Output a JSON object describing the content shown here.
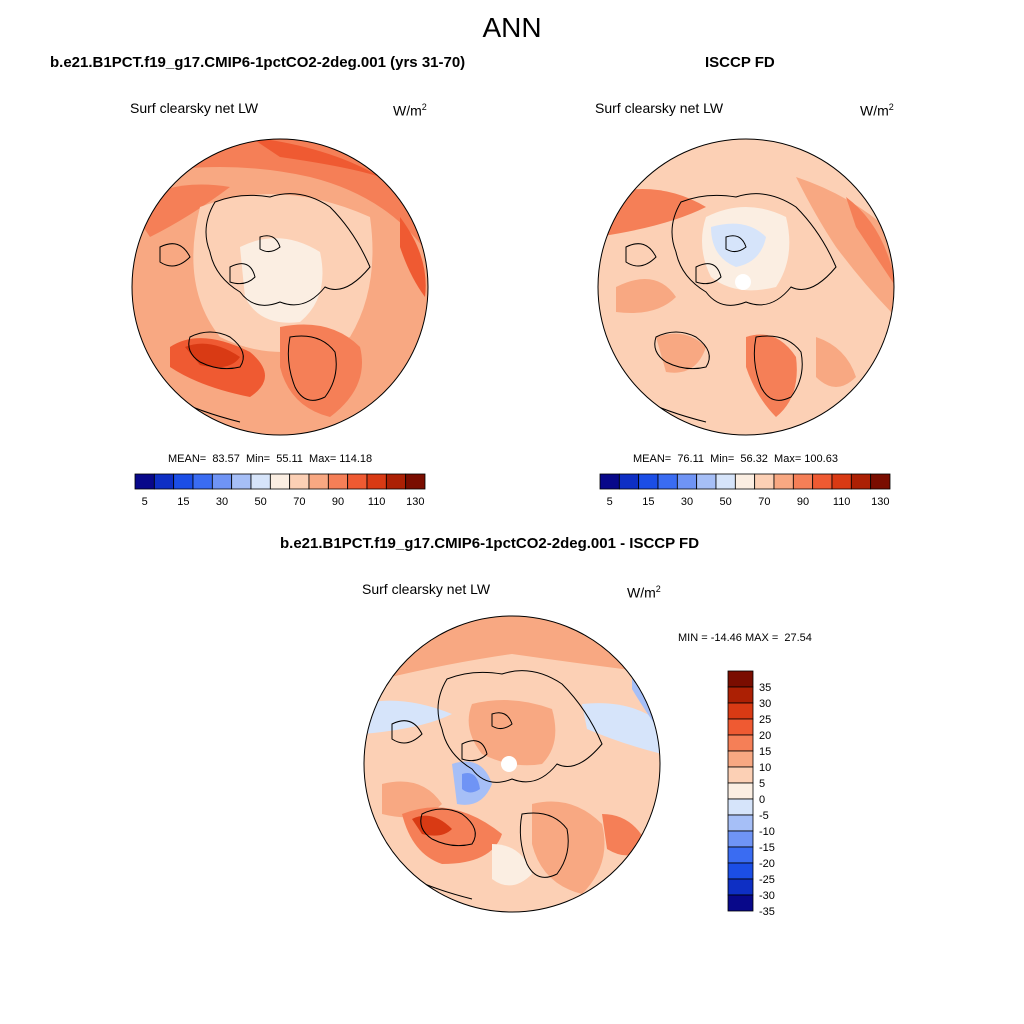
{
  "figure": {
    "title": "ANN"
  },
  "panels": [
    {
      "title": "b.e21.B1PCT.f19_g17.CMIP6-1pctCO2-2deg.001 (yrs 31-70)",
      "variable": "Surf clearsky net LW",
      "units_base": "W/m",
      "units_exp": "2",
      "stats": "MEAN=  83.57  Min=  55.11  Max= 114.18"
    },
    {
      "title": "ISCCP FD",
      "variable": "Surf clearsky net LW",
      "units_base": "W/m",
      "units_exp": "2",
      "stats": "MEAN=  76.11  Min=  56.32  Max= 100.63"
    },
    {
      "title": "b.e21.B1PCT.f19_g17.CMIP6-1pctCO2-2deg.001 - ISCCP FD",
      "variable": "Surf clearsky net LW",
      "units_base": "W/m",
      "units_exp": "2",
      "stats": "MIN = -14.46 MAX =  27.54"
    }
  ],
  "colorbars": {
    "absolute": {
      "colors": [
        "#08088a",
        "#0e2fc4",
        "#1b4ee6",
        "#3a6cf2",
        "#6f94f5",
        "#a6bff7",
        "#d6e4fa",
        "#fbeee2",
        "#fcd0b5",
        "#f8a882",
        "#f57f57",
        "#ef5a32",
        "#d93a14",
        "#ac2004",
        "#7a0d00"
      ],
      "tick_labels": [
        "5",
        "15",
        "30",
        "50",
        "70",
        "90",
        "110",
        "130"
      ]
    },
    "difference": {
      "colors": [
        "#7a0d00",
        "#ac2004",
        "#d93a14",
        "#ef5a32",
        "#f57f57",
        "#f8a882",
        "#fcd0b5",
        "#fbeee2",
        "#d6e4fa",
        "#a6bff7",
        "#6f94f5",
        "#3a6cf2",
        "#1b4ee6",
        "#0e2fc4",
        "#08088a"
      ],
      "tick_labels": [
        "35",
        "30",
        "25",
        "20",
        "15",
        "10",
        "5",
        "0",
        "-5",
        "-10",
        "-15",
        "-20",
        "-25",
        "-30",
        "-35"
      ]
    }
  },
  "chart_data": [
    {
      "type": "heatmap",
      "title": "b.e21.B1PCT.f19_g17.CMIP6-1pctCO2-2deg.001 (yrs 31-70)",
      "projection": "north polar stereographic",
      "variable": "Surf clearsky net LW",
      "units": "W/m2",
      "mean": 83.57,
      "min": 55.11,
      "max": 114.18
    },
    {
      "type": "heatmap",
      "title": "ISCCP FD",
      "projection": "north polar stereographic",
      "variable": "Surf clearsky net LW",
      "units": "W/m2",
      "mean": 76.11,
      "min": 56.32,
      "max": 100.63
    },
    {
      "type": "heatmap",
      "title": "b.e21.B1PCT.f19_g17.CMIP6-1pctCO2-2deg.001 - ISCCP FD",
      "projection": "north polar stereographic",
      "variable": "Surf clearsky net LW",
      "units": "W/m2",
      "min": -14.46,
      "max": 27.54
    }
  ]
}
